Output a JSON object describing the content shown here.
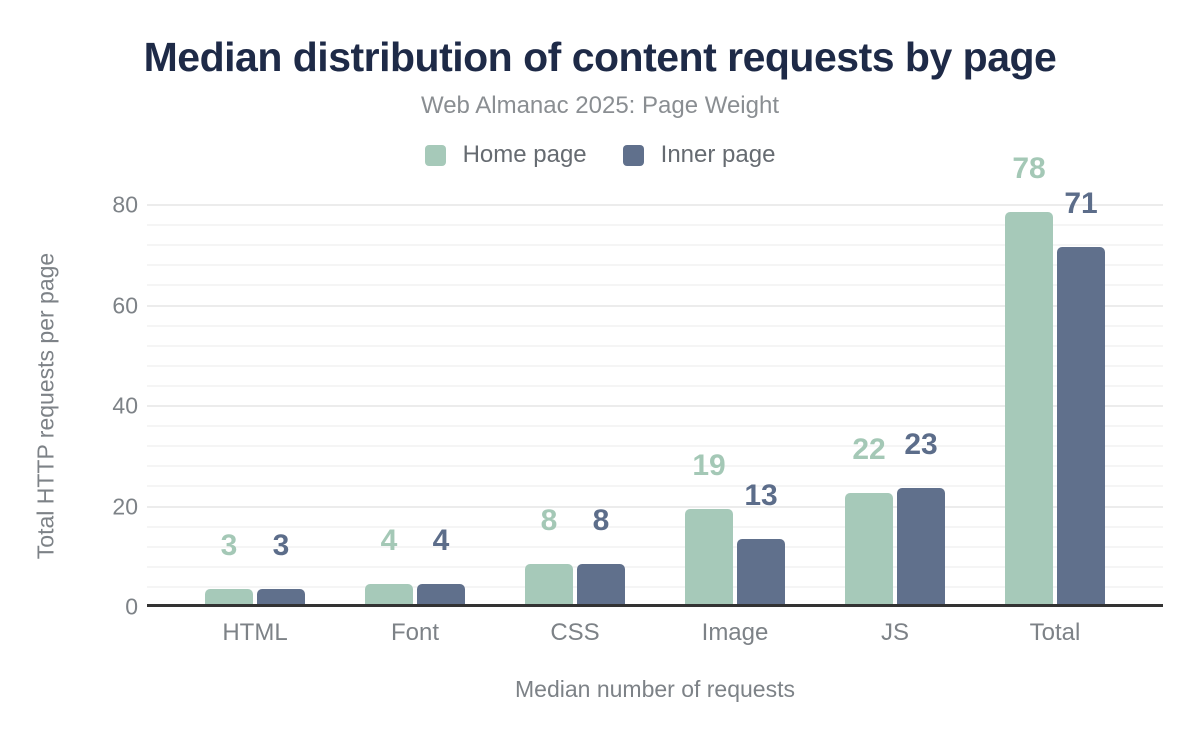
{
  "header": {
    "title": "Median distribution of content requests by page",
    "subtitle": "Web Almanac 2025: Page Weight"
  },
  "legend": {
    "items": [
      {
        "label": "Home page",
        "color": "#a6c9b9"
      },
      {
        "label": "Inner page",
        "color": "#60708c"
      }
    ]
  },
  "chart_data": {
    "type": "bar",
    "title": "Median distribution of content requests by page",
    "subtitle": "Web Almanac 2025: Page Weight",
    "categories": [
      "HTML",
      "Font",
      "CSS",
      "Image",
      "JS",
      "Total"
    ],
    "series": [
      {
        "name": "Home page",
        "color": "#a6c9b9",
        "label_color": "#a4c8b6",
        "values": [
          3,
          4,
          8,
          19,
          22,
          78
        ]
      },
      {
        "name": "Inner page",
        "color": "#60708c",
        "label_color": "#5c6d8a",
        "values": [
          3,
          4,
          8,
          13,
          23,
          71
        ]
      }
    ],
    "xlabel": "Median number of requests",
    "ylabel": "Total HTTP requests per page",
    "ylim": [
      0,
      80
    ],
    "yticks": [
      0,
      20,
      40,
      60,
      80
    ],
    "grid": {
      "orientation": "horizontal",
      "minor_step": 4,
      "major_step": 20
    },
    "legend_position": "top",
    "value_labels": true
  },
  "colors": {
    "title": "#1e2a47",
    "subtitle": "#8a8e92",
    "axis_text": "#7d8287",
    "legend_text": "#666b71",
    "axis_line": "#333333",
    "grid_minor": "#f5f5f5",
    "grid_major": "#ececec",
    "background": "#ffffff"
  }
}
